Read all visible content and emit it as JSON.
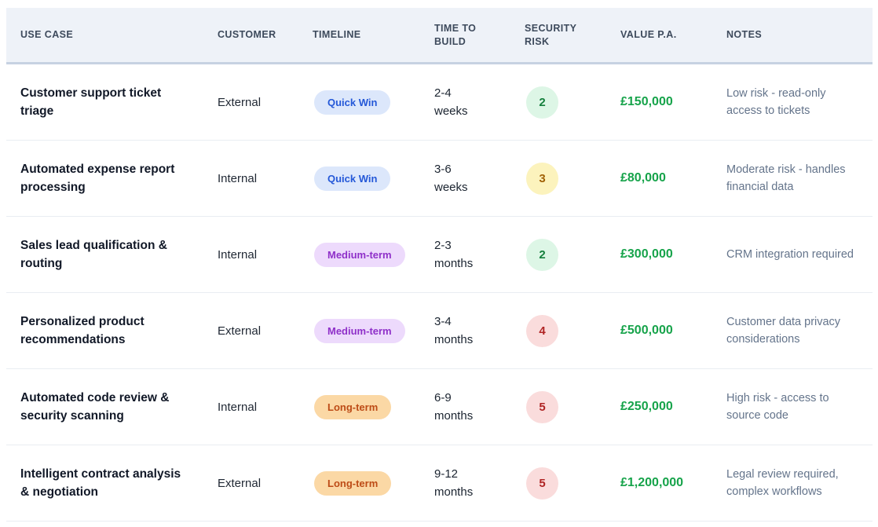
{
  "colors": {
    "header_bg": "#eef2f8",
    "header_text": "#3d4a5c",
    "header_border": "#c7d2e2",
    "row_border": "#e9edf2",
    "value_green": "#16a34a",
    "notes_gray": "#64748b",
    "pill_quick_win_bg": "#dce7fb",
    "pill_quick_win_text": "#2458d8",
    "pill_medium_term_bg": "#eddafc",
    "pill_medium_term_text": "#8f30c9",
    "pill_long_term_bg": "#fbd8a5",
    "pill_long_term_text": "#bd4b16",
    "risk_low_bg": "#ddf6e6",
    "risk_low_text": "#15803d",
    "risk_medium_bg": "#fcf3bd",
    "risk_medium_text": "#a16207",
    "risk_high_bg": "#fadcdc",
    "risk_high_text": "#b02525"
  },
  "table": {
    "headers": [
      {
        "id": "use_case",
        "label": "USE CASE"
      },
      {
        "id": "customer",
        "label": "CUSTOMER"
      },
      {
        "id": "timeline",
        "label": "TIMELINE"
      },
      {
        "id": "time_to_build",
        "label": "TIME TO BUILD"
      },
      {
        "id": "security_risk",
        "label": "SECURITY RISK"
      },
      {
        "id": "value_pa",
        "label": "VALUE P.A."
      },
      {
        "id": "notes",
        "label": "NOTES"
      }
    ],
    "rows": [
      {
        "use_case": "Customer support ticket triage",
        "customer": "External",
        "timeline": {
          "label": "Quick Win",
          "variant": "quick-win"
        },
        "time_to_build": "2-4 weeks",
        "security_risk": {
          "value": "2",
          "level": "low"
        },
        "value_pa": "£150,000",
        "notes": "Low risk - read-only access to tickets"
      },
      {
        "use_case": "Automated expense report processing",
        "customer": "Internal",
        "timeline": {
          "label": "Quick Win",
          "variant": "quick-win"
        },
        "time_to_build": "3-6 weeks",
        "security_risk": {
          "value": "3",
          "level": "medium"
        },
        "value_pa": "£80,000",
        "notes": "Moderate risk - handles financial data"
      },
      {
        "use_case": "Sales lead qualification & routing",
        "customer": "Internal",
        "timeline": {
          "label": "Medium-term",
          "variant": "medium-term"
        },
        "time_to_build": "2-3 months",
        "security_risk": {
          "value": "2",
          "level": "low"
        },
        "value_pa": "£300,000",
        "notes": "CRM integration required"
      },
      {
        "use_case": "Personalized product recommendations",
        "customer": "External",
        "timeline": {
          "label": "Medium-term",
          "variant": "medium-term"
        },
        "time_to_build": "3-4 months",
        "security_risk": {
          "value": "4",
          "level": "high"
        },
        "value_pa": "£500,000",
        "notes": "Customer data privacy considerations"
      },
      {
        "use_case": "Automated code review & security scanning",
        "customer": "Internal",
        "timeline": {
          "label": "Long-term",
          "variant": "long-term"
        },
        "time_to_build": "6-9 months",
        "security_risk": {
          "value": "5",
          "level": "high"
        },
        "value_pa": "£250,000",
        "notes": "High risk - access to source code"
      },
      {
        "use_case": "Intelligent contract analysis & negotiation",
        "customer": "External",
        "timeline": {
          "label": "Long-term",
          "variant": "long-term"
        },
        "time_to_build": "9-12 months",
        "security_risk": {
          "value": "5",
          "level": "high"
        },
        "value_pa": "£1,200,000",
        "notes": "Legal review required, complex workflows"
      }
    ]
  }
}
